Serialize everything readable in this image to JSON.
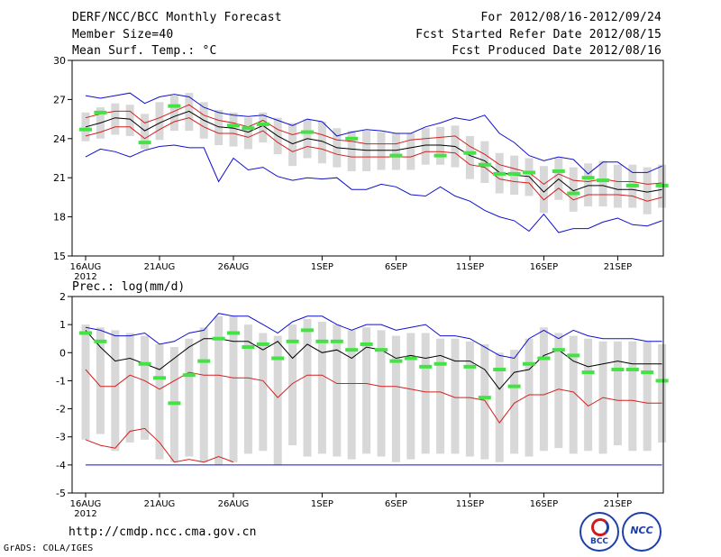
{
  "header": {
    "title": "DERF/NCC/BCC Monthly Forecast",
    "member_size": "Member Size=40",
    "variable": "Mean Surf. Temp.: °C",
    "period": "For 2012/08/16-2012/09/24",
    "started": "Fcst Started Refer Date 2012/08/15",
    "produced": "Fcst Produced Date 2012/08/16"
  },
  "footer": {
    "url": "http://cmdp.ncc.cma.gov.cn",
    "credit": "GrADS: COLA/IGES",
    "logo_left": "BCC",
    "logo_right": "NCC"
  },
  "colors": {
    "mean": "#000000",
    "spread": "#d42020",
    "extreme": "#1010d0",
    "obs_mark": "#44e244",
    "box": "#d8d8d8"
  },
  "chart_data": [
    {
      "type": "line",
      "title": "Mean Surf. Temp.: °C",
      "x": [
        1,
        2,
        3,
        4,
        5,
        6,
        7,
        8,
        9,
        10,
        11,
        12,
        13,
        14,
        15,
        16,
        17,
        18,
        19,
        20,
        21,
        22,
        23,
        24,
        25,
        26,
        27,
        28,
        29,
        30,
        31,
        32,
        33,
        34,
        35,
        36,
        37,
        38,
        39,
        40
      ],
      "xticks": [
        "16AUG",
        "21AUG",
        "26AUG",
        "1SEP",
        "6SEP",
        "11SEP",
        "16SEP",
        "21SEP"
      ],
      "xtick_positions": [
        1,
        6,
        11,
        17,
        22,
        27,
        32,
        37
      ],
      "year_label": "2012",
      "ylim": [
        15,
        30
      ],
      "yticks": [
        15,
        18,
        21,
        24,
        27,
        30
      ],
      "series": [
        {
          "name": "max",
          "values": [
            27.3,
            27.1,
            27.3,
            27.5,
            26.7,
            27.2,
            27.4,
            27.2,
            26.4,
            26.0,
            25.8,
            25.7,
            25.8,
            25.4,
            25.0,
            25.5,
            25.3,
            24.2,
            24.5,
            24.7,
            24.6,
            24.4,
            24.4,
            24.9,
            25.2,
            25.6,
            25.4,
            25.8,
            24.4,
            23.7,
            22.7,
            22.3,
            22.6,
            22.4,
            21.3,
            22.2,
            22.2,
            21.4,
            21.4,
            21.9
          ]
        },
        {
          "name": "upper",
          "values": [
            25.6,
            25.9,
            26.1,
            26.1,
            25.2,
            25.6,
            26.1,
            26.6,
            25.8,
            25.4,
            25.2,
            24.9,
            25.4,
            24.7,
            24.3,
            24.6,
            24.3,
            23.9,
            23.8,
            23.6,
            23.6,
            23.6,
            23.9,
            24.0,
            24.1,
            24.2,
            23.4,
            22.8,
            22.0,
            21.7,
            21.4,
            20.5,
            21.3,
            20.8,
            20.7,
            20.9,
            20.7,
            20.7,
            20.5,
            20.6
          ]
        },
        {
          "name": "mean",
          "values": [
            24.9,
            25.2,
            25.6,
            25.5,
            24.6,
            25.2,
            25.7,
            26.1,
            25.4,
            24.9,
            24.8,
            24.5,
            25.0,
            24.2,
            23.6,
            24.0,
            23.8,
            23.3,
            23.2,
            23.1,
            23.1,
            23.1,
            23.3,
            23.5,
            23.5,
            23.4,
            22.7,
            22.3,
            21.4,
            21.2,
            21.1,
            19.9,
            20.9,
            20.0,
            20.4,
            20.4,
            20.1,
            20.1,
            19.9,
            20.1
          ]
        },
        {
          "name": "lower",
          "values": [
            24.2,
            24.5,
            24.9,
            24.9,
            24.0,
            24.7,
            25.3,
            25.6,
            24.9,
            24.4,
            24.4,
            24.1,
            24.6,
            23.7,
            23.0,
            23.4,
            23.2,
            22.8,
            22.6,
            22.6,
            22.6,
            22.6,
            22.6,
            23.0,
            23.0,
            22.9,
            22.0,
            21.8,
            20.9,
            20.7,
            20.6,
            19.3,
            20.2,
            19.3,
            19.7,
            19.7,
            19.7,
            19.6,
            19.2,
            19.5
          ]
        },
        {
          "name": "min",
          "values": [
            22.6,
            23.2,
            23.0,
            22.6,
            23.1,
            23.4,
            23.5,
            23.3,
            23.3,
            20.7,
            22.5,
            21.6,
            21.8,
            21.1,
            20.8,
            21.0,
            20.9,
            21.0,
            20.1,
            20.1,
            20.5,
            20.3,
            19.7,
            19.6,
            20.3,
            19.6,
            19.2,
            18.5,
            18.0,
            17.7,
            16.9,
            18.2,
            16.8,
            17.1,
            17.1,
            17.6,
            17.9,
            17.4,
            17.3,
            17.7
          ]
        },
        {
          "name": "box_top",
          "values": [
            26.0,
            26.4,
            26.7,
            26.6,
            25.9,
            26.8,
            27.3,
            27.5,
            26.8,
            26.2,
            26.0,
            25.6,
            26.0,
            25.6,
            25.2,
            25.5,
            25.3,
            24.8,
            24.6,
            24.6,
            24.5,
            24.4,
            24.4,
            24.8,
            24.9,
            25.0,
            24.2,
            23.8,
            22.9,
            22.7,
            22.5,
            21.9,
            22.5,
            21.8,
            22.1,
            22.3,
            22.0,
            22.0,
            21.8,
            22.0
          ]
        },
        {
          "name": "box_bottom",
          "values": [
            23.8,
            24.0,
            24.3,
            24.2,
            23.2,
            23.9,
            24.6,
            24.6,
            24.0,
            23.5,
            23.4,
            23.2,
            23.7,
            22.8,
            21.9,
            22.5,
            22.1,
            21.8,
            21.5,
            21.5,
            21.6,
            21.6,
            21.6,
            22.0,
            22.0,
            21.8,
            20.9,
            20.6,
            19.8,
            19.7,
            19.6,
            18.3,
            19.3,
            18.4,
            18.8,
            18.8,
            18.7,
            18.7,
            18.2,
            18.7
          ]
        },
        {
          "name": "obs_mark",
          "values": [
            24.7,
            26.0,
            null,
            null,
            23.7,
            null,
            26.5,
            null,
            null,
            null,
            25.0,
            24.8,
            25.1,
            null,
            null,
            24.5,
            null,
            null,
            24.0,
            null,
            null,
            22.7,
            null,
            null,
            22.7,
            null,
            22.9,
            22.0,
            21.3,
            21.3,
            21.4,
            null,
            21.5,
            19.8,
            21.0,
            20.8,
            null,
            20.4,
            null,
            20.4
          ]
        }
      ]
    },
    {
      "type": "line",
      "title": "Prec.: log(mm/d)",
      "x": [
        1,
        2,
        3,
        4,
        5,
        6,
        7,
        8,
        9,
        10,
        11,
        12,
        13,
        14,
        15,
        16,
        17,
        18,
        19,
        20,
        21,
        22,
        23,
        24,
        25,
        26,
        27,
        28,
        29,
        30,
        31,
        32,
        33,
        34,
        35,
        36,
        37,
        38,
        39,
        40
      ],
      "xticks": [
        "16AUG",
        "21AUG",
        "26AUG",
        "1SEP",
        "6SEP",
        "11SEP",
        "16SEP",
        "21SEP"
      ],
      "xtick_positions": [
        1,
        6,
        11,
        17,
        22,
        27,
        32,
        37
      ],
      "year_label": "2012",
      "ylim": [
        -5,
        2
      ],
      "yticks": [
        -5,
        -4,
        -3,
        -2,
        -1,
        0,
        1,
        2
      ],
      "series": [
        {
          "name": "max",
          "values": [
            0.9,
            0.8,
            0.6,
            0.6,
            0.7,
            0.3,
            0.4,
            0.7,
            0.8,
            1.4,
            1.3,
            1.3,
            1.0,
            0.7,
            1.1,
            1.3,
            1.3,
            1.0,
            0.8,
            1.0,
            1.0,
            0.8,
            0.9,
            1.0,
            0.6,
            0.6,
            0.5,
            0.2,
            -0.1,
            -0.2,
            0.5,
            0.8,
            0.5,
            0.8,
            0.6,
            0.5,
            0.5,
            0.5,
            0.4,
            0.4
          ]
        },
        {
          "name": "mean",
          "values": [
            0.8,
            0.2,
            -0.3,
            -0.2,
            -0.4,
            -0.6,
            -0.2,
            0.2,
            0.5,
            0.5,
            0.4,
            0.4,
            0.1,
            0.4,
            -0.2,
            0.3,
            0.0,
            0.1,
            -0.2,
            0.2,
            0.1,
            -0.2,
            -0.1,
            -0.2,
            -0.1,
            -0.3,
            -0.3,
            -0.6,
            -1.3,
            -0.7,
            -0.6,
            -0.1,
            0.1,
            -0.3,
            -0.5,
            -0.4,
            -0.3,
            -0.4,
            -0.4,
            -0.4
          ]
        },
        {
          "name": "spread_low",
          "values": [
            -0.6,
            -1.2,
            -1.2,
            -0.8,
            -1.0,
            -1.3,
            -1.0,
            -0.7,
            -0.8,
            -0.8,
            -0.9,
            -0.9,
            -1.0,
            -1.6,
            -1.1,
            -0.8,
            -0.8,
            -1.1,
            -1.1,
            -1.1,
            -1.2,
            -1.2,
            -1.3,
            -1.4,
            -1.4,
            -1.6,
            -1.6,
            -1.7,
            -2.5,
            -1.8,
            -1.5,
            -1.5,
            -1.3,
            -1.4,
            -1.9,
            -1.6,
            -1.7,
            -1.7,
            -1.8,
            -1.8
          ]
        },
        {
          "name": "deep_low",
          "values": [
            -3.1,
            -3.3,
            -3.4,
            -2.8,
            -2.7,
            -3.2,
            -3.9,
            -3.8,
            -3.9,
            -3.7,
            -3.9,
            null,
            null,
            null,
            null,
            null,
            null,
            null,
            null,
            null,
            null,
            null,
            null,
            null,
            null,
            null,
            null,
            null,
            null,
            null,
            null,
            null,
            null,
            null,
            null,
            null,
            null,
            null,
            null,
            null
          ]
        },
        {
          "name": "floor",
          "values": [
            -4.0,
            -4.0,
            -4.0,
            -4.0,
            -4.0,
            -4.0,
            -4.0,
            -4.0,
            -4.0,
            -4.0,
            -4.0,
            -4.0,
            -4.0,
            -4.0,
            -4.0,
            -4.0,
            -4.0,
            -4.0,
            -4.0,
            -4.0,
            -4.0,
            -4.0,
            -4.0,
            -4.0,
            -4.0,
            -4.0,
            -4.0,
            -4.0,
            -4.0,
            -4.0,
            -4.0,
            -4.0,
            -4.0,
            -4.0,
            -4.0,
            -4.0,
            -4.0,
            -4.0,
            -4.0,
            -4.0
          ]
        },
        {
          "name": "box_top",
          "values": [
            1.0,
            0.9,
            0.8,
            0.7,
            0.6,
            0.3,
            0.2,
            0.5,
            0.9,
            1.3,
            1.3,
            1.0,
            0.7,
            0.6,
            1.0,
            1.2,
            1.1,
            1.0,
            0.8,
            0.9,
            0.8,
            0.6,
            0.7,
            0.7,
            0.5,
            0.5,
            0.4,
            0.3,
            0.0,
            0.1,
            0.5,
            0.9,
            0.7,
            0.6,
            0.5,
            0.4,
            0.4,
            0.4,
            0.4,
            0.3
          ]
        },
        {
          "name": "box_bottom",
          "values": [
            -3.1,
            -2.9,
            -3.5,
            -3.2,
            -3.1,
            -3.8,
            -3.9,
            -3.7,
            -3.9,
            -4.0,
            -3.9,
            -3.6,
            -3.5,
            -4.0,
            -3.3,
            -3.7,
            -3.6,
            -3.7,
            -3.8,
            -3.6,
            -3.7,
            -3.9,
            -3.8,
            -3.6,
            -3.6,
            -3.6,
            -3.7,
            -3.8,
            -3.9,
            -3.6,
            -3.7,
            -3.5,
            -3.4,
            -3.6,
            -3.5,
            -3.6,
            -3.3,
            -3.5,
            -3.5,
            -3.2
          ]
        },
        {
          "name": "obs_mark",
          "values": [
            0.7,
            0.4,
            null,
            null,
            -0.4,
            -0.9,
            -1.8,
            -0.8,
            -0.3,
            0.5,
            0.7,
            0.2,
            0.3,
            -0.2,
            0.4,
            0.8,
            0.4,
            0.4,
            0.1,
            0.3,
            0.1,
            -0.3,
            -0.2,
            -0.5,
            -0.4,
            null,
            -0.5,
            -1.6,
            -0.6,
            -1.2,
            -0.4,
            -0.2,
            0.1,
            -0.1,
            -0.7,
            null,
            -0.6,
            -0.6,
            -0.7,
            -1.0
          ]
        }
      ]
    }
  ]
}
